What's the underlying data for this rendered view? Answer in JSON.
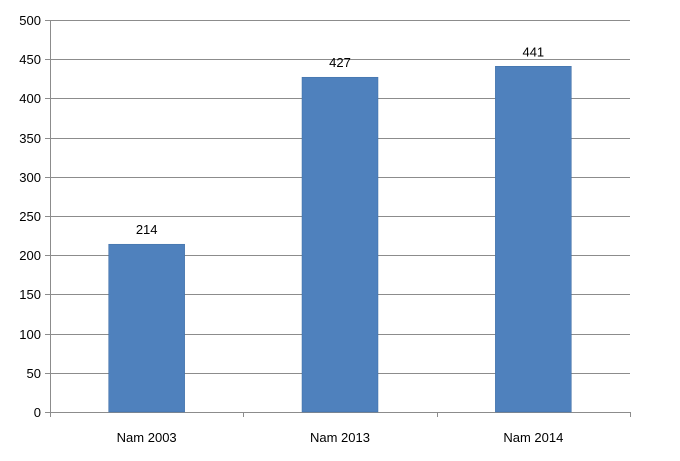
{
  "chart_data": {
    "type": "bar",
    "categories": [
      "Nam 2003",
      "Nam 2013",
      "Nam 2014"
    ],
    "values": [
      214,
      427,
      441
    ],
    "data_labels": [
      "214",
      "427",
      "441"
    ],
    "title": "",
    "xlabel": "",
    "ylabel": "",
    "ylim": [
      0,
      500
    ],
    "yticks": [
      0,
      50,
      100,
      150,
      200,
      250,
      300,
      350,
      400,
      450,
      500
    ],
    "grid": true,
    "legend": "none",
    "colors": {
      "bar": "#4f81bd",
      "bar_edge": "#3f6ea6",
      "grid": "#8c8c8c",
      "axis": "#8c8c8c",
      "text": "#000000"
    }
  }
}
